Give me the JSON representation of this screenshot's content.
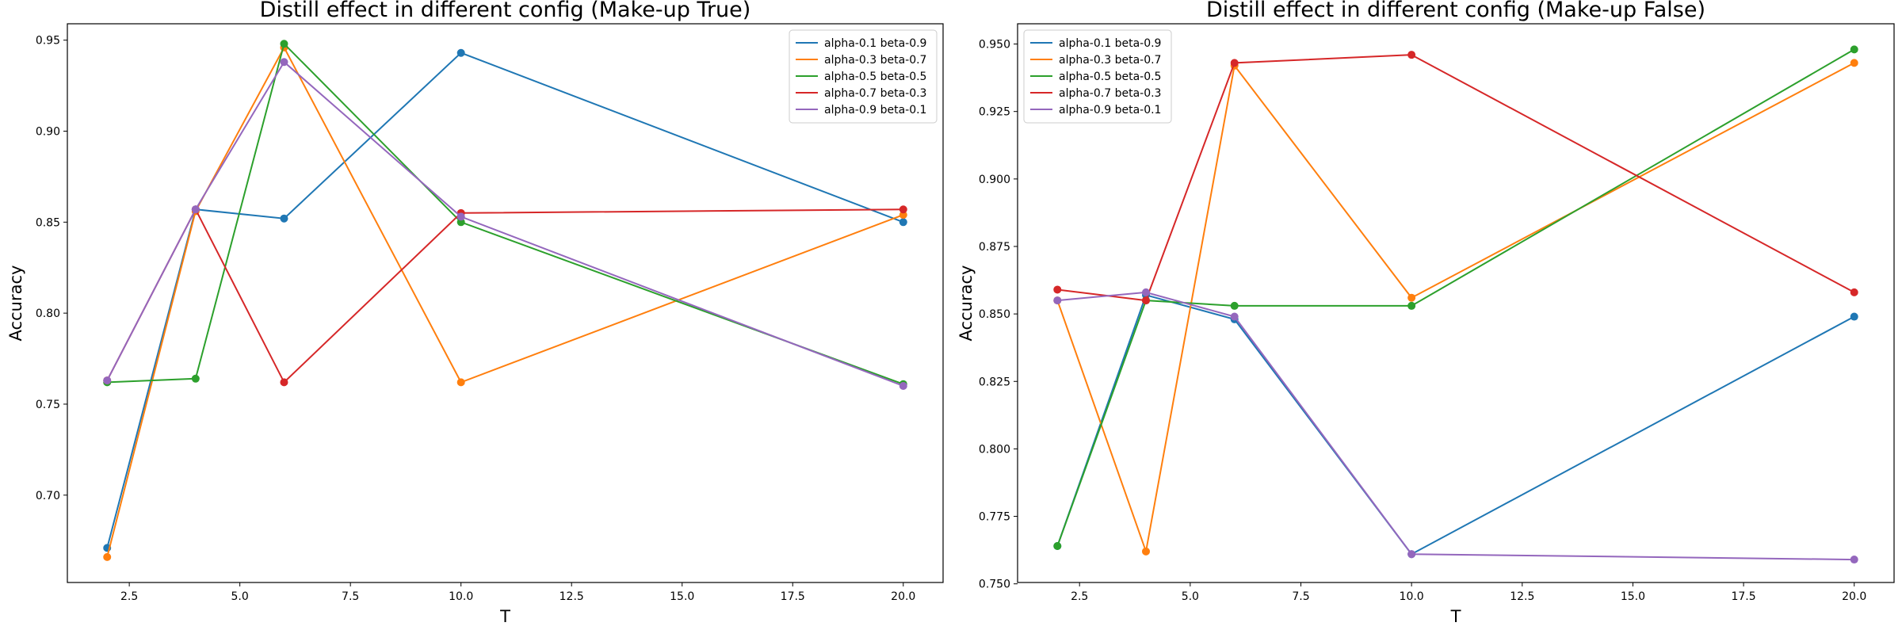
{
  "chart_data": [
    {
      "type": "line",
      "title": "Distill effect in different config (Make-up True)",
      "xlabel": "T",
      "ylabel": "Accuracy",
      "x": [
        2,
        4,
        6,
        10,
        20
      ],
      "xlim": [
        1.1,
        20.9
      ],
      "ylim": [
        0.652,
        0.959
      ],
      "xticks": [
        2.5,
        5.0,
        7.5,
        10.0,
        12.5,
        15.0,
        17.5,
        20.0
      ],
      "xtick_labels": [
        "2.5",
        "5.0",
        "7.5",
        "10.0",
        "12.5",
        "15.0",
        "17.5",
        "20.0"
      ],
      "yticks": [
        0.7,
        0.75,
        0.8,
        0.85,
        0.9,
        0.95
      ],
      "ytick_labels": [
        "0.70",
        "0.75",
        "0.80",
        "0.85",
        "0.90",
        "0.95"
      ],
      "grid": false,
      "legend_position": "top-right",
      "series": [
        {
          "name": "alpha-0.1 beta-0.9",
          "color": "#1f77b4",
          "values": [
            0.671,
            0.857,
            0.852,
            0.943,
            0.85
          ]
        },
        {
          "name": "alpha-0.3 beta-0.7",
          "color": "#ff7f0e",
          "values": [
            0.666,
            0.856,
            0.946,
            0.762,
            0.854
          ]
        },
        {
          "name": "alpha-0.5 beta-0.5",
          "color": "#2ca02c",
          "values": [
            0.762,
            0.764,
            0.948,
            0.85,
            0.761
          ]
        },
        {
          "name": "alpha-0.7 beta-0.3",
          "color": "#d62728",
          "values": [
            0.763,
            0.857,
            0.762,
            0.855,
            0.857
          ]
        },
        {
          "name": "alpha-0.9 beta-0.1",
          "color": "#9467bd",
          "values": [
            0.763,
            0.857,
            0.938,
            0.853,
            0.76
          ]
        }
      ]
    },
    {
      "type": "line",
      "title": "Distill effect in different config (Make-up False)",
      "xlabel": "T",
      "ylabel": "Accuracy",
      "x": [
        2,
        4,
        6,
        10,
        20
      ],
      "xlim": [
        1.1,
        20.9
      ],
      "ylim": [
        0.7505,
        0.9575
      ],
      "xticks": [
        2.5,
        5.0,
        7.5,
        10.0,
        12.5,
        15.0,
        17.5,
        20.0
      ],
      "xtick_labels": [
        "2.5",
        "5.0",
        "7.5",
        "10.0",
        "12.5",
        "15.0",
        "17.5",
        "20.0"
      ],
      "yticks": [
        0.75,
        0.775,
        0.8,
        0.825,
        0.85,
        0.875,
        0.9,
        0.925,
        0.95
      ],
      "ytick_labels": [
        "0.750",
        "0.775",
        "0.800",
        "0.825",
        "0.850",
        "0.875",
        "0.900",
        "0.925",
        "0.950"
      ],
      "grid": false,
      "legend_position": "top-left",
      "series": [
        {
          "name": "alpha-0.1 beta-0.9",
          "color": "#1f77b4",
          "values": [
            0.764,
            0.857,
            0.848,
            0.761,
            0.849
          ]
        },
        {
          "name": "alpha-0.3 beta-0.7",
          "color": "#ff7f0e",
          "values": [
            0.855,
            0.762,
            0.942,
            0.856,
            0.943
          ]
        },
        {
          "name": "alpha-0.5 beta-0.5",
          "color": "#2ca02c",
          "values": [
            0.764,
            0.855,
            0.853,
            0.853,
            0.948
          ]
        },
        {
          "name": "alpha-0.7 beta-0.3",
          "color": "#d62728",
          "values": [
            0.859,
            0.855,
            0.943,
            0.946,
            0.858
          ]
        },
        {
          "name": "alpha-0.9 beta-0.1",
          "color": "#9467bd",
          "values": [
            0.855,
            0.858,
            0.849,
            0.761,
            0.759
          ]
        }
      ]
    }
  ]
}
